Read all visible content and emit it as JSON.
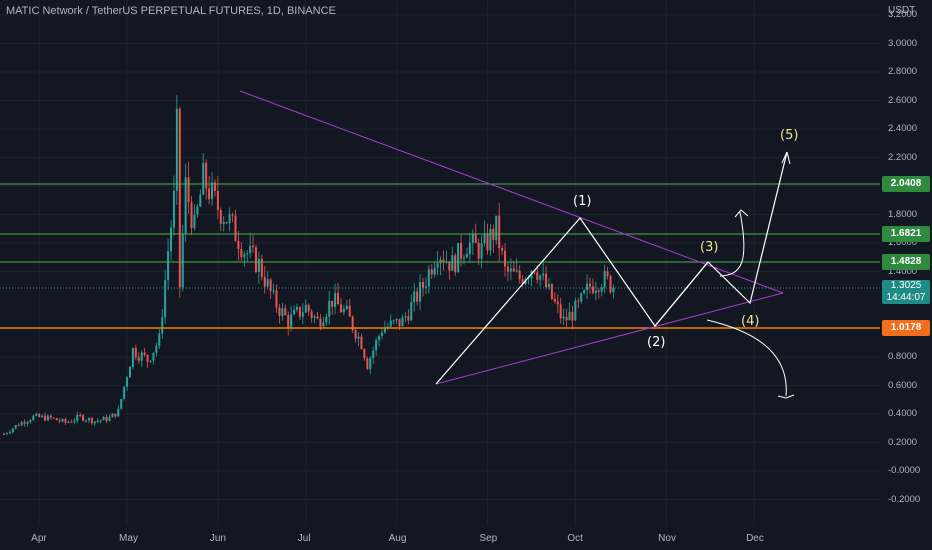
{
  "header": {
    "title": "MATIC Network / TetherUS PERPETUAL FUTURES, 1D, BINANCE",
    "currency": "USDT"
  },
  "colors": {
    "background": "#131722",
    "candle_up": "#26a69a",
    "candle_down": "#ef5350",
    "triangle": "#a13fc9",
    "resistance": "#4caf50",
    "support": "#f57c00",
    "wave_lines": "#ffffff",
    "annotation_yellow": "#f0e68c"
  },
  "price_axis": {
    "labels": [
      "3.2000",
      "3.0000",
      "2.8000",
      "2.6000",
      "2.4000",
      "2.2000",
      "2.0000",
      "1.8000",
      "1.6000",
      "1.4000",
      "1.0000",
      "0.8000",
      "0.6000",
      "0.4000",
      "0.2000",
      "-0.0000",
      "-0.2000"
    ]
  },
  "price_tags": {
    "level_1": "2.0408",
    "level_2": "1.6821",
    "level_3": "1.4828",
    "current_price": "1.3025",
    "countdown": "14:44:07",
    "support": "1.0178"
  },
  "time_axis": {
    "labels": [
      "Apr",
      "May",
      "Jun",
      "Jul",
      "Aug",
      "Sep",
      "Oct",
      "Nov",
      "Dec"
    ]
  },
  "annotations": {
    "wave_1": "(1)",
    "wave_2": "(2)",
    "wave_3": "(3)",
    "wave_4": "(4)",
    "wave_5": "(5)"
  },
  "chart_data": {
    "type": "candlestick",
    "symbol": "MATICUSDT",
    "interval": "1D",
    "ylim": [
      -0.3,
      3.25
    ],
    "x_range": [
      "2021-03-20",
      "2021-12-31"
    ],
    "horizontal_levels": [
      2.0408,
      1.6821,
      1.4828,
      1.0178
    ],
    "current_price": 1.3025,
    "close_series": [
      {
        "date": "2021-03-20",
        "close": 0.26
      },
      {
        "date": "2021-03-25",
        "close": 0.33
      },
      {
        "date": "2021-03-30",
        "close": 0.38
      },
      {
        "date": "2021-04-05",
        "close": 0.37
      },
      {
        "date": "2021-04-10",
        "close": 0.34
      },
      {
        "date": "2021-04-15",
        "close": 0.38
      },
      {
        "date": "2021-04-20",
        "close": 0.35
      },
      {
        "date": "2021-04-25",
        "close": 0.37
      },
      {
        "date": "2021-04-28",
        "close": 0.42
      },
      {
        "date": "2021-05-03",
        "close": 0.85
      },
      {
        "date": "2021-05-08",
        "close": 0.78
      },
      {
        "date": "2021-05-12",
        "close": 0.92
      },
      {
        "date": "2021-05-15",
        "close": 1.55
      },
      {
        "date": "2021-05-17",
        "close": 1.9
      },
      {
        "date": "2021-05-18",
        "close": 2.4
      },
      {
        "date": "2021-05-19",
        "close": 1.3
      },
      {
        "date": "2021-05-21",
        "close": 2.0
      },
      {
        "date": "2021-05-24",
        "close": 1.7
      },
      {
        "date": "2021-05-27",
        "close": 2.05
      },
      {
        "date": "2021-06-01",
        "close": 1.85
      },
      {
        "date": "2021-06-05",
        "close": 1.75
      },
      {
        "date": "2021-06-10",
        "close": 1.55
      },
      {
        "date": "2021-06-15",
        "close": 1.45
      },
      {
        "date": "2021-06-20",
        "close": 1.2
      },
      {
        "date": "2021-06-25",
        "close": 1.05
      },
      {
        "date": "2021-07-01",
        "close": 1.15
      },
      {
        "date": "2021-07-05",
        "close": 1.05
      },
      {
        "date": "2021-07-10",
        "close": 1.2
      },
      {
        "date": "2021-07-15",
        "close": 1.1
      },
      {
        "date": "2021-07-20",
        "close": 0.9
      },
      {
        "date": "2021-07-22",
        "close": 0.75
      },
      {
        "date": "2021-07-27",
        "close": 1.0
      },
      {
        "date": "2021-08-03",
        "close": 1.05
      },
      {
        "date": "2021-08-10",
        "close": 1.3
      },
      {
        "date": "2021-08-15",
        "close": 1.55
      },
      {
        "date": "2021-08-20",
        "close": 1.45
      },
      {
        "date": "2021-08-25",
        "close": 1.6
      },
      {
        "date": "2021-08-30",
        "close": 1.55
      },
      {
        "date": "2021-09-04",
        "close": 1.7
      },
      {
        "date": "2021-09-07",
        "close": 1.4
      },
      {
        "date": "2021-09-12",
        "close": 1.35
      },
      {
        "date": "2021-09-17",
        "close": 1.45
      },
      {
        "date": "2021-09-22",
        "close": 1.25
      },
      {
        "date": "2021-09-27",
        "close": 1.05
      },
      {
        "date": "2021-10-02",
        "close": 1.15
      },
      {
        "date": "2021-10-06",
        "close": 1.3
      },
      {
        "date": "2021-10-10",
        "close": 1.35
      },
      {
        "date": "2021-10-14",
        "close": 1.3025
      }
    ]
  }
}
